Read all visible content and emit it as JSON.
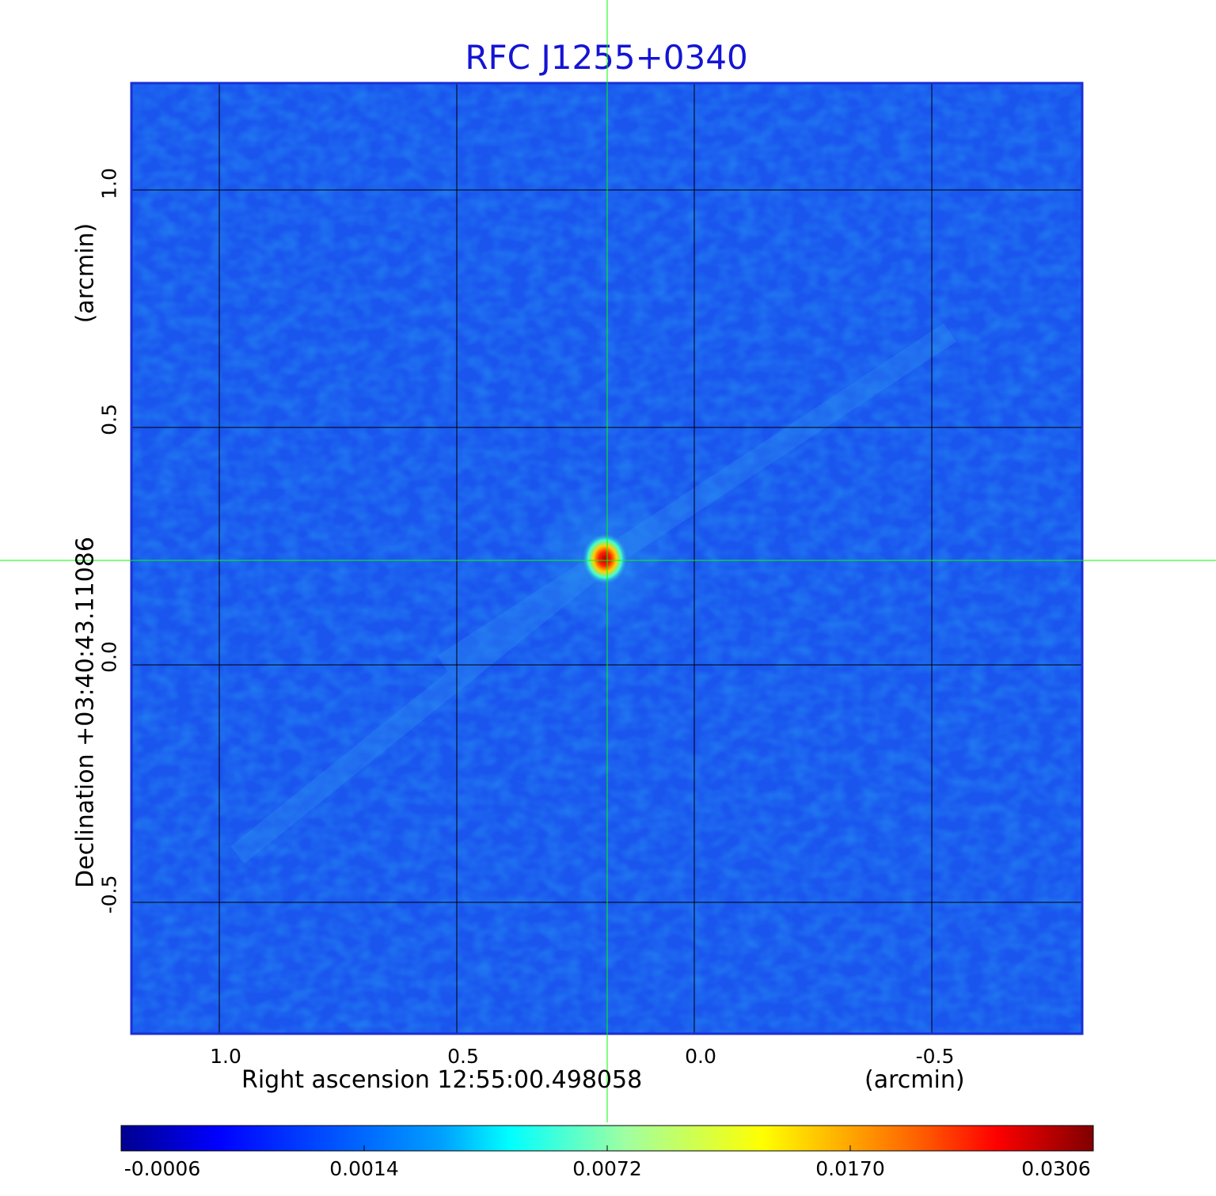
{
  "title": "RFC J1255+0340",
  "x_axis": {
    "label_left": "Right ascension  12:55:00.498058",
    "label_right": "(arcmin)",
    "ticks": [
      "1.0",
      "0.5",
      "0.0",
      "-0.5"
    ]
  },
  "y_axis": {
    "label_main": "Declination  +03:40:43.11086",
    "label_unit": "(arcmin)",
    "ticks": [
      "1.0",
      "0.5",
      "0.0",
      "-0.5"
    ]
  },
  "colorbar": {
    "ticks": [
      "-0.0006",
      "0.0014",
      "0.0072",
      "0.0170",
      "0.0306"
    ],
    "colormap": [
      "#00008f",
      "#0000ff",
      "#00ffff",
      "#ffff00",
      "#ff0000",
      "#800000"
    ]
  },
  "image": {
    "background_color": "#1a55ee",
    "frame_color": "#1a2fd6",
    "grid_color": "#000000",
    "crosshair_color": "#00ff00",
    "source_peak": 0.0306
  }
}
